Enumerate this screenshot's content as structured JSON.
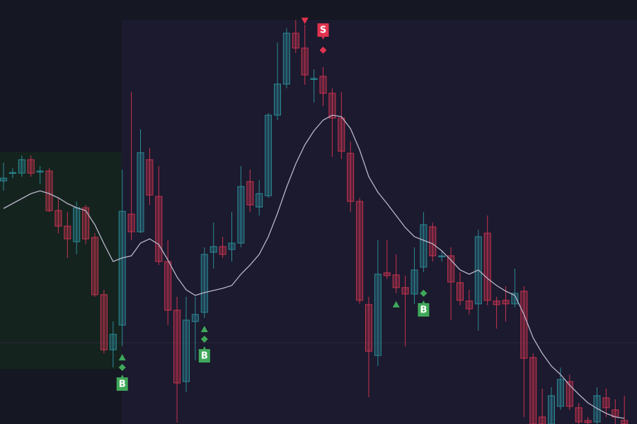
{
  "chart_data": {
    "type": "candlestick",
    "ylim": [
      0,
      600
    ],
    "up_color": "#2a8a96",
    "down_color": "#c8334f",
    "open": [
      344,
      355,
      355,
      374,
      357,
      358,
      302,
      280,
      258,
      306,
      264,
      183,
      105,
      140,
      297,
      272,
      374,
      322,
      230,
      161,
      60,
      145,
      158,
      243,
      251,
      247,
      256,
      343,
      307,
      323,
      437,
      481,
      553,
      532,
      488,
      492,
      468,
      433,
      383,
      315,
      169,
      97,
      214,
      211,
      193,
      184,
      222,
      279,
      237,
      238,
      200,
      174,
      170,
      270,
      174,
      175,
      170,
      188,
      94,
      10,
      0,
      25,
      60,
      23,
      5,
      3,
      37,
      20,
      5
    ],
    "high": [
      370,
      362,
      380,
      380,
      365,
      362,
      320,
      300,
      315,
      310,
      270,
      190,
      145,
      360,
      470,
      417,
      390,
      365,
      260,
      180,
      180,
      180,
      250,
      285,
      265,
      300,
      365,
      360,
      345,
      440,
      540,
      560,
      572,
      565,
      502,
      505,
      475,
      470,
      400,
      320,
      180,
      260,
      260,
      240,
      210,
      250,
      300,
      285,
      245,
      250,
      215,
      190,
      275,
      295,
      180,
      195,
      220,
      195,
      100,
      50,
      52,
      80,
      70,
      30,
      10,
      52,
      50,
      35,
      40
    ],
    "low": [
      330,
      348,
      350,
      350,
      340,
      300,
      270,
      235,
      240,
      255,
      180,
      100,
      80,
      110,
      260,
      270,
      310,
      225,
      140,
      2,
      45,
      90,
      150,
      220,
      235,
      230,
      250,
      300,
      295,
      320,
      430,
      475,
      525,
      480,
      455,
      450,
      378,
      375,
      300,
      170,
      38,
      82,
      205,
      185,
      110,
      170,
      215,
      230,
      230,
      147,
      168,
      155,
      132,
      168,
      135,
      145,
      165,
      10,
      0,
      0,
      0,
      20,
      20,
      0,
      0,
      0,
      10,
      0,
      0
    ],
    "close": [
      348,
      356,
      374,
      355,
      358,
      302,
      280,
      262,
      306,
      262,
      183,
      105,
      127,
      301,
      272,
      384,
      324,
      230,
      161,
      58,
      147,
      155,
      240,
      251,
      240,
      256,
      336,
      310,
      326,
      437,
      481,
      553,
      532,
      494,
      489,
      468,
      433,
      386,
      315,
      175,
      103,
      212,
      210,
      193,
      184,
      218,
      282,
      238,
      238,
      201,
      175,
      163,
      265,
      175,
      169,
      170,
      185,
      93,
      0,
      0,
      40,
      63,
      25,
      3,
      2,
      40,
      23,
      10,
      0
    ],
    "ma": {
      "color": "#b9b6c9",
      "values": [
        305,
        312,
        319,
        326,
        330,
        326,
        320,
        312,
        306,
        302,
        282,
        255,
        230,
        235,
        238,
        256,
        262,
        254,
        232,
        208,
        190,
        182,
        186,
        189,
        192,
        196,
        212,
        225,
        240,
        265,
        298,
        335,
        368,
        395,
        415,
        430,
        437,
        435,
        418,
        388,
        350,
        328,
        312,
        295,
        278,
        265,
        260,
        255,
        245,
        232,
        218,
        212,
        218,
        206,
        196,
        188,
        182,
        155,
        122,
        100,
        82,
        70,
        55,
        42,
        30,
        22,
        15,
        10,
        8
      ]
    },
    "buy_label": "B",
    "sell_label": "S",
    "buy_color": "#3fa85a",
    "sell_color": "#e0334f",
    "buy_signals": [
      13,
      22,
      46
    ],
    "sell_signals": [
      35
    ],
    "up_triangles": [
      13,
      22,
      43
    ],
    "buy_diamonds": [
      13,
      22,
      46
    ],
    "down_triangles": [
      33
    ],
    "sell_diamonds": [
      35
    ]
  }
}
